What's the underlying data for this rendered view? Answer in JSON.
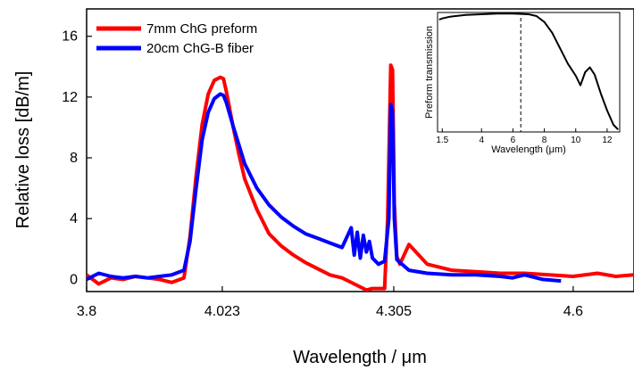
{
  "chart_data": [
    {
      "type": "line",
      "xlabel": "Wavelength / μm",
      "ylabel": "Relative loss [dB/m]",
      "xlim": [
        3.8,
        4.7
      ],
      "ylim": [
        -0.8,
        17.8
      ],
      "xticks": [
        "3.8",
        "4.023",
        "4.305",
        "4.6"
      ],
      "xtick_values": [
        3.8,
        4.023,
        4.305,
        4.6
      ],
      "yticks": [
        "0",
        "4",
        "8",
        "12",
        "16"
      ],
      "ytick_values": [
        0,
        4,
        8,
        12,
        16
      ],
      "legend_position": "top-left",
      "series": [
        {
          "name": "7mm ChG preform",
          "color": "#ff0000",
          "x": [
            3.8,
            3.82,
            3.84,
            3.86,
            3.88,
            3.9,
            3.92,
            3.94,
            3.96,
            3.97,
            3.98,
            3.99,
            4.0,
            4.01,
            4.02,
            4.025,
            4.03,
            4.04,
            4.05,
            4.06,
            4.08,
            4.1,
            4.12,
            4.14,
            4.16,
            4.18,
            4.2,
            4.22,
            4.24,
            4.26,
            4.27,
            4.29,
            4.295,
            4.3,
            4.303,
            4.306,
            4.31,
            4.315,
            4.33,
            4.36,
            4.4,
            4.44,
            4.48,
            4.52,
            4.56,
            4.6,
            4.64,
            4.67,
            4.7
          ],
          "y": [
            0.3,
            -0.3,
            0.1,
            0.0,
            0.2,
            0.1,
            0.0,
            -0.2,
            0.1,
            2.8,
            6.8,
            10.2,
            12.2,
            13.1,
            13.3,
            13.2,
            12.3,
            10.2,
            8.3,
            6.6,
            4.6,
            3.0,
            2.2,
            1.6,
            1.1,
            0.7,
            0.3,
            0.1,
            -0.3,
            -0.7,
            -0.6,
            -0.6,
            4.0,
            14.1,
            13.8,
            5.0,
            1.5,
            1.0,
            2.3,
            1.0,
            0.6,
            0.5,
            0.4,
            0.4,
            0.3,
            0.2,
            0.4,
            0.2,
            0.3
          ]
        },
        {
          "name": "20cm ChG-B fiber",
          "color": "#0000ff",
          "x": [
            3.8,
            3.82,
            3.84,
            3.86,
            3.88,
            3.9,
            3.92,
            3.94,
            3.96,
            3.97,
            3.98,
            3.99,
            4.0,
            4.01,
            4.02,
            4.025,
            4.03,
            4.04,
            4.05,
            4.06,
            4.08,
            4.1,
            4.12,
            4.14,
            4.16,
            4.18,
            4.2,
            4.22,
            4.235,
            4.24,
            4.245,
            4.25,
            4.255,
            4.26,
            4.265,
            4.27,
            4.28,
            4.29,
            4.297,
            4.3,
            4.303,
            4.306,
            4.31,
            4.33,
            4.36,
            4.4,
            4.44,
            4.48,
            4.5,
            4.52,
            4.55,
            4.58
          ],
          "y": [
            0.0,
            0.4,
            0.2,
            0.1,
            0.2,
            0.1,
            0.2,
            0.3,
            0.6,
            2.5,
            6.0,
            9.2,
            11.0,
            11.9,
            12.2,
            12.1,
            11.6,
            10.2,
            8.9,
            7.6,
            6.0,
            4.9,
            4.1,
            3.5,
            3.0,
            2.7,
            2.4,
            2.1,
            3.4,
            1.6,
            3.1,
            1.4,
            2.9,
            1.8,
            2.5,
            1.4,
            1.0,
            1.2,
            4.0,
            11.5,
            11.0,
            4.0,
            1.3,
            0.6,
            0.4,
            0.3,
            0.3,
            0.2,
            0.1,
            0.3,
            0.0,
            -0.1
          ]
        }
      ]
    },
    {
      "type": "line",
      "xlabel": "Wavelength (μm)",
      "ylabel": "Preform transmission",
      "xlim": [
        1.2,
        12.8
      ],
      "xticks": [
        "1.5",
        "4",
        "6",
        "8",
        "10",
        "12"
      ],
      "xtick_values": [
        1.5,
        4,
        6,
        8,
        10,
        12
      ],
      "marker_line_x": 6.5,
      "series": [
        {
          "name": "",
          "color": "#000000",
          "x": [
            1.3,
            1.5,
            2,
            3,
            4,
            5,
            6,
            7,
            7.5,
            8,
            8.5,
            9,
            9.5,
            10,
            10.3,
            10.6,
            10.9,
            11.2,
            11.6,
            12,
            12.4,
            12.7
          ],
          "y": [
            0.94,
            0.95,
            0.965,
            0.98,
            0.985,
            0.99,
            0.99,
            0.985,
            0.97,
            0.92,
            0.83,
            0.7,
            0.57,
            0.47,
            0.39,
            0.5,
            0.54,
            0.48,
            0.32,
            0.18,
            0.06,
            0.02
          ]
        }
      ]
    }
  ]
}
